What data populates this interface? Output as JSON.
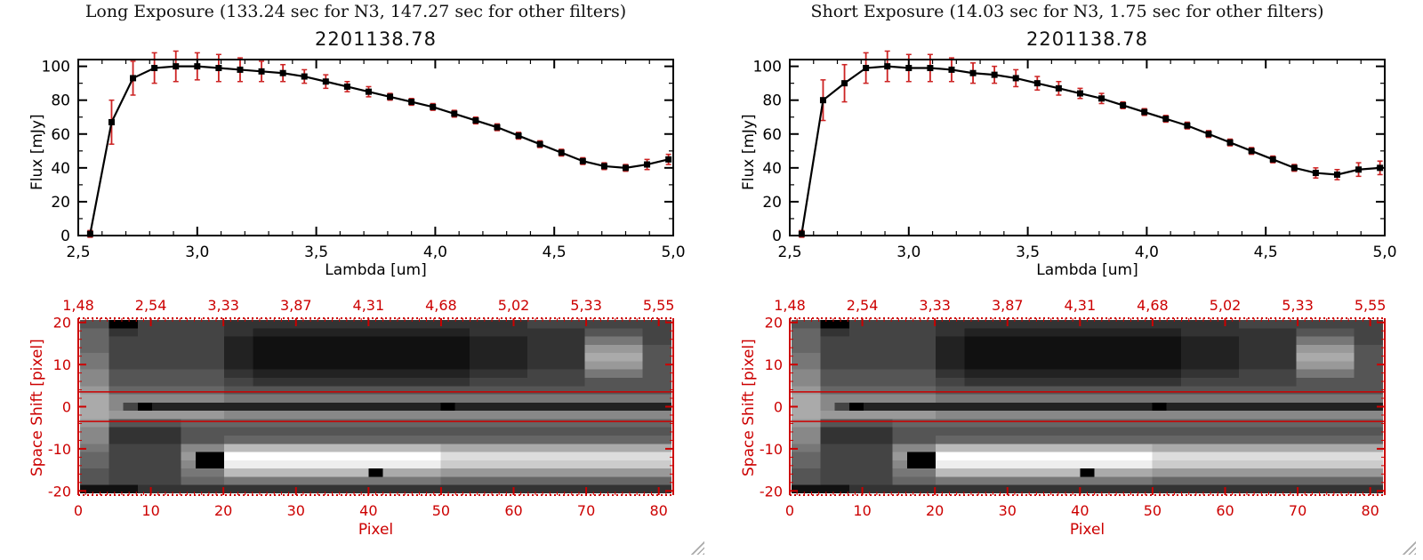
{
  "chart_data": [
    {
      "type": "line",
      "panel": "long-exposure",
      "header": "Long Exposure (133.24 sec for N3, 147.27 sec for other filters)",
      "title": "2201138.78",
      "xlabel": "Lambda [um]",
      "ylabel": "Flux [mJy]",
      "xlim": [
        2.5,
        5.0
      ],
      "ylim": [
        0,
        104
      ],
      "xtick_values": [
        2.5,
        3.0,
        3.5,
        4.0,
        4.5,
        5.0
      ],
      "xtick_labels": [
        "2,5",
        "3,0",
        "3,5",
        "4,0",
        "4,5",
        "5,0"
      ],
      "ytick_values": [
        0,
        20,
        40,
        60,
        80,
        100
      ],
      "ytick_labels": [
        "0",
        "20",
        "40",
        "60",
        "80",
        "100"
      ],
      "x": [
        2.55,
        2.64,
        2.73,
        2.82,
        2.91,
        3.0,
        3.09,
        3.18,
        3.27,
        3.36,
        3.45,
        3.54,
        3.63,
        3.72,
        3.81,
        3.9,
        3.99,
        4.08,
        4.17,
        4.26,
        4.35,
        4.44,
        4.53,
        4.62,
        4.71,
        4.8,
        4.89,
        4.98
      ],
      "y": [
        1,
        67,
        93,
        99,
        100,
        100,
        99,
        98,
        97,
        96,
        94,
        91,
        88,
        85,
        82,
        79,
        76,
        72,
        68,
        64,
        59,
        54,
        49,
        44,
        41,
        40,
        42,
        45
      ],
      "yerr": [
        2,
        13,
        10,
        9,
        9,
        8,
        8,
        7,
        6,
        5,
        4,
        4,
        3,
        3,
        2,
        2,
        2,
        2,
        2,
        2,
        2,
        2,
        2,
        2,
        2,
        2,
        3,
        3
      ],
      "marker": "square",
      "line_color": "#000000",
      "error_color": "#cc2222",
      "legend": "none",
      "grid": "off"
    },
    {
      "type": "line",
      "panel": "short-exposure",
      "header": "Short Exposure (14.03 sec for N3, 1.75 sec for other filters)",
      "title": "2201138.78",
      "xlabel": "Lambda [um]",
      "ylabel": "Flux [mJy]",
      "xlim": [
        2.5,
        5.0
      ],
      "ylim": [
        0,
        104
      ],
      "xtick_values": [
        2.5,
        3.0,
        3.5,
        4.0,
        4.5,
        5.0
      ],
      "xtick_labels": [
        "2,5",
        "3,0",
        "3,5",
        "4,0",
        "4,5",
        "5,0"
      ],
      "ytick_values": [
        0,
        20,
        40,
        60,
        80,
        100
      ],
      "ytick_labels": [
        "0",
        "20",
        "40",
        "60",
        "80",
        "100"
      ],
      "x": [
        2.55,
        2.64,
        2.73,
        2.82,
        2.91,
        3.0,
        3.09,
        3.18,
        3.27,
        3.36,
        3.45,
        3.54,
        3.63,
        3.72,
        3.81,
        3.9,
        3.99,
        4.08,
        4.17,
        4.26,
        4.35,
        4.44,
        4.53,
        4.62,
        4.71,
        4.8,
        4.89,
        4.98
      ],
      "y": [
        1,
        80,
        90,
        99,
        100,
        99,
        99,
        98,
        96,
        95,
        93,
        90,
        87,
        84,
        81,
        77,
        73,
        69,
        65,
        60,
        55,
        50,
        45,
        40,
        37,
        36,
        39,
        40
      ],
      "yerr": [
        2,
        12,
        11,
        9,
        9,
        8,
        8,
        7,
        6,
        5,
        5,
        4,
        4,
        3,
        3,
        2,
        2,
        2,
        2,
        2,
        2,
        2,
        2,
        2,
        3,
        3,
        4,
        4
      ],
      "marker": "square",
      "line_color": "#000000",
      "error_color": "#cc2222",
      "legend": "none",
      "grid": "off"
    },
    {
      "type": "heatmap",
      "panel": "both",
      "xlabel": "Pixel",
      "ylabel": "Space Shift [pixel]",
      "axis_color": "#cc0000",
      "xlim": [
        0,
        82
      ],
      "ylim": [
        -21,
        21
      ],
      "xtick_values": [
        0,
        10,
        20,
        30,
        40,
        50,
        60,
        70,
        80
      ],
      "xtick_labels": [
        "0",
        "10",
        "20",
        "30",
        "40",
        "50",
        "60",
        "70",
        "80"
      ],
      "ytick_values": [
        20,
        10,
        0,
        -10,
        -20
      ],
      "ytick_labels": [
        "20",
        "10",
        "0",
        "-10",
        "-20"
      ],
      "top_axis_labels": [
        "1,48",
        "2,54",
        "3,33",
        "3,87",
        "4,31",
        "4,68",
        "5,02",
        "5,33",
        "5,55"
      ],
      "top_axis_positions": [
        0,
        10,
        20,
        30,
        40,
        50,
        60,
        70,
        80
      ],
      "aperture_lines_y": [
        3.5,
        -3.5
      ],
      "encoding": "hex brightness per cell, 0=black f=white, each cell = 2x2 detector pixels, rows top (y=+20) to bottom (y=-20)",
      "rows": [
        "55004444443333333333333333333334444444444",
        "66334444443322222222222222233333333555544",
        "66444444442211111111111111122223333777744",
        "66444444442211111111111111122223333999955",
        "77444444442211111111111111122223333aaaa55",
        "77444444442211111111111111122223333999955",
        "88555555553322222222222222233334444777755",
        "88555555554433333333333333344444444555555",
        "99666666665555555555555555555555555555555",
        "aa888888887777777777777777777777777777777",
        "aa840222222222222222222220222222222222222",
        "aa999999998888888888888888888888888888888",
        "9955555666666666666666666666666666666666",
        "8833333555555555555555555555555555555555",
        "8833333555666666666666666666666666666666",
        "7744444888bbbbbbbbbbbbbbbaaaaaaaaaaaaaaaa",
        "6644444900fffffffffffffffdddddddddddddddd",
        "6644444800eeeeeeeeeeeeeeecccccccccccccccc",
        "5544444777bbbbbbbbbb0aaaa9999999999999999",
        "5544444666777777777777777666666666666666",
        "11113333333333333333333333333333333333333"
      ]
    }
  ]
}
